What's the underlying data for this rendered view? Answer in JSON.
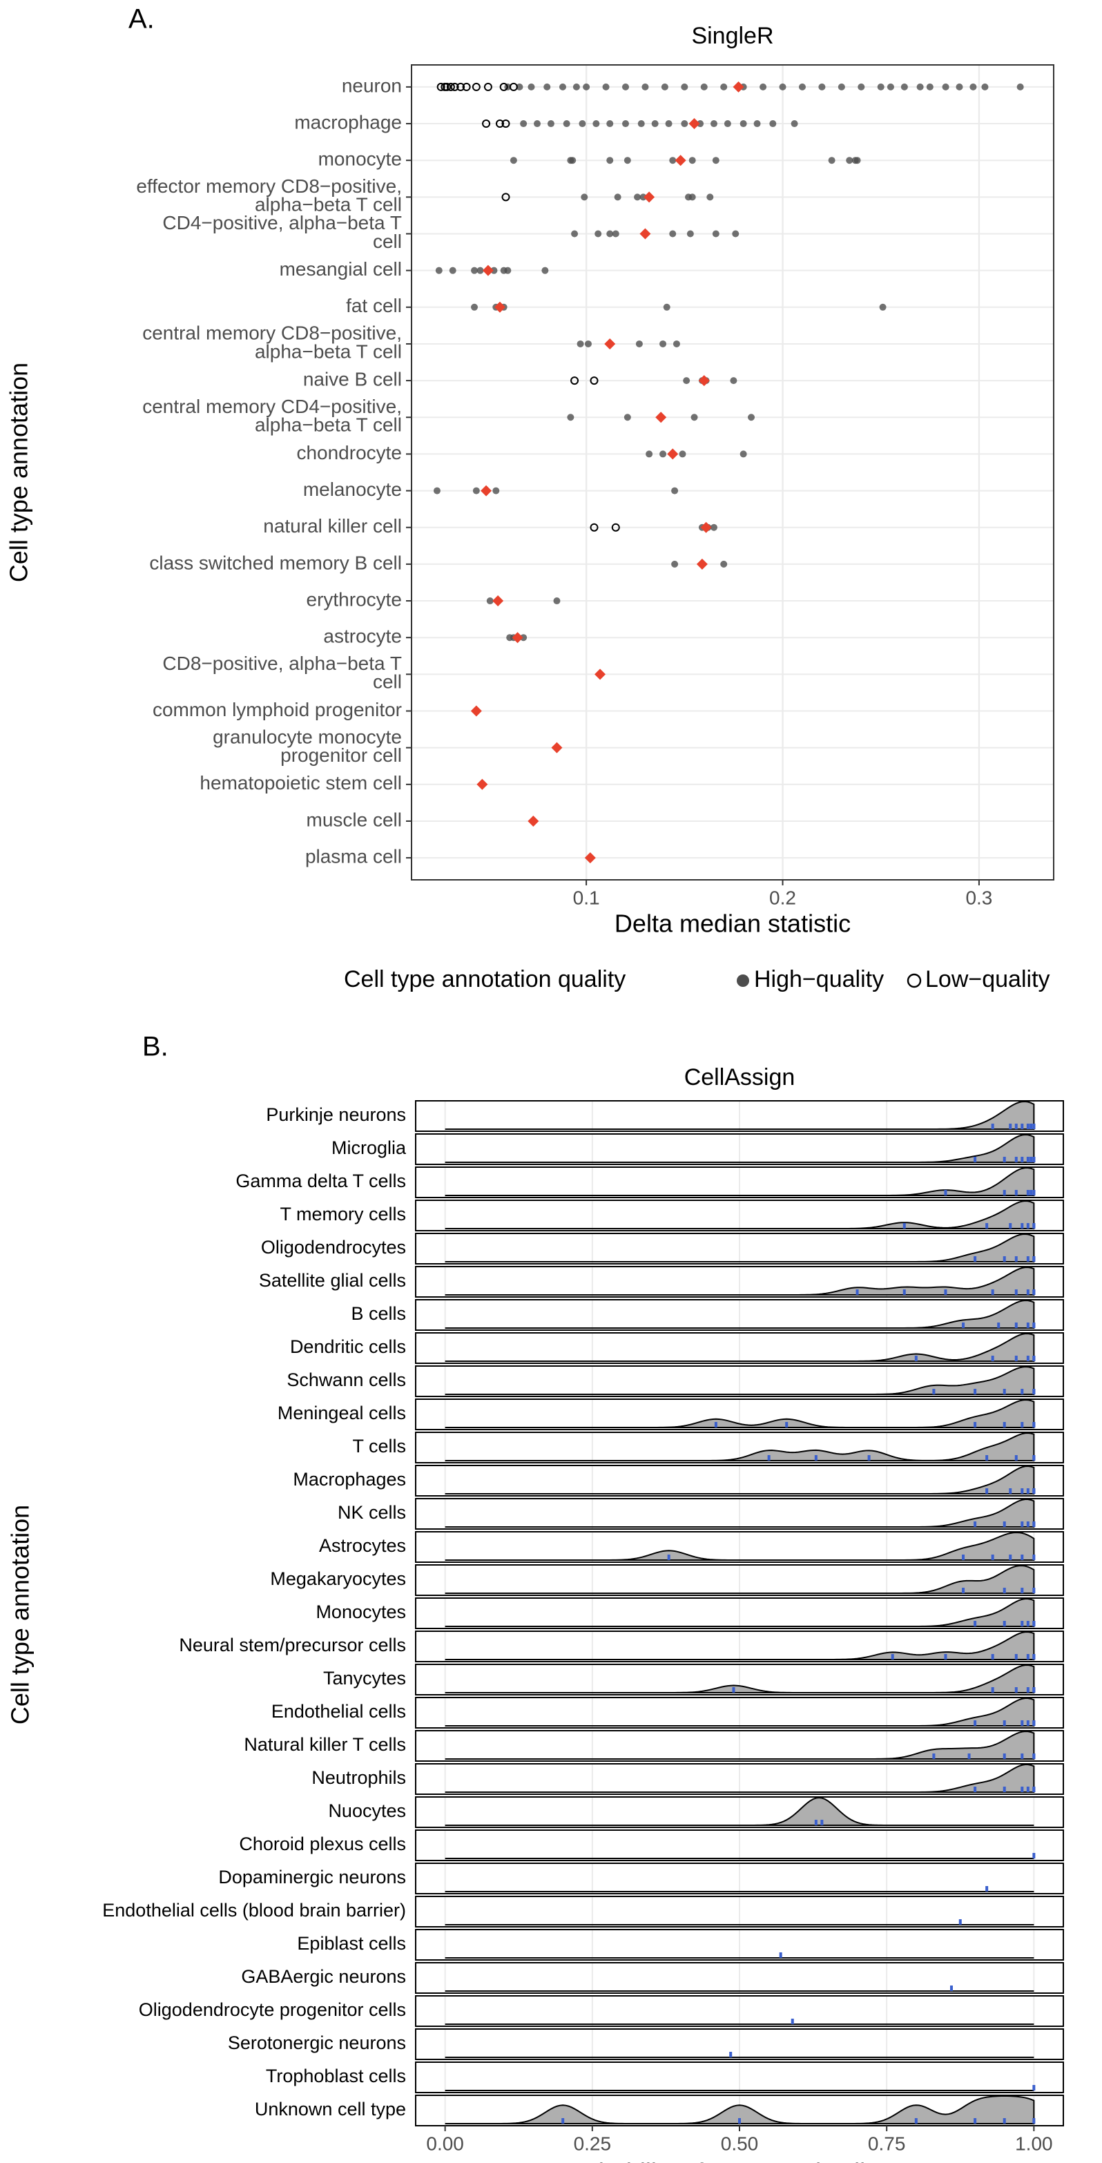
{
  "chart_data": [
    {
      "type": "dot",
      "panel_label": "A.",
      "title": "SingleR",
      "x_label": "Delta median statistic",
      "y_label": "Cell type annotation",
      "categories": [
        "neuron",
        "macrophage",
        "monocyte",
        "effector memory CD8−positive,\nalpha−beta T cell",
        "CD4−positive, alpha−beta T\ncell",
        "mesangial cell",
        "fat cell",
        "central memory CD8−positive,\nalpha−beta T cell",
        "naive B cell",
        "central memory CD4−positive,\nalpha−beta T cell",
        "chondrocyte",
        "melanocyte",
        "natural killer cell",
        "class switched memory B cell",
        "erythrocyte",
        "astrocyte",
        "CD8−positive, alpha−beta T\ncell",
        "common lymphoid progenitor",
        "granulocyte monocyte\nprogenitor cell",
        "hematopoietic stem cell",
        "muscle cell",
        "plasma cell"
      ],
      "medians": [
        0.1775,
        0.155,
        0.148,
        0.132,
        0.13,
        0.05,
        0.056,
        0.112,
        0.16,
        0.138,
        0.144,
        0.049,
        0.161,
        0.159,
        0.055,
        0.065,
        0.107,
        0.044,
        0.085,
        0.047,
        0.073,
        0.102
      ],
      "median_color": "#e8412c",
      "series": [
        {
          "name": "High−quality",
          "color": "#4d4d4d",
          "filled": true,
          "values": [
            [
              0.06,
              0.066,
              0.072,
              0.08,
              0.088,
              0.095,
              0.1,
              0.11,
              0.12,
              0.13,
              0.14,
              0.15,
              0.16,
              0.17,
              0.18,
              0.19,
              0.2,
              0.21,
              0.22,
              0.23,
              0.24,
              0.25,
              0.255,
              0.262,
              0.27,
              0.275,
              0.283,
              0.29,
              0.297,
              0.303,
              0.321
            ],
            [
              0.068,
              0.075,
              0.082,
              0.09,
              0.098,
              0.105,
              0.112,
              0.12,
              0.128,
              0.135,
              0.142,
              0.15,
              0.158,
              0.165,
              0.172,
              0.18,
              0.187,
              0.195,
              0.206
            ],
            [
              0.063,
              0.092,
              0.093,
              0.112,
              0.121,
              0.144,
              0.154,
              0.166,
              0.225,
              0.234,
              0.237,
              0.238
            ],
            [
              0.099,
              0.116,
              0.126,
              0.129,
              0.152,
              0.154,
              0.163
            ],
            [
              0.094,
              0.106,
              0.112,
              0.115,
              0.144,
              0.153,
              0.166,
              0.176
            ],
            [
              0.025,
              0.032,
              0.043,
              0.046,
              0.053,
              0.058,
              0.06,
              0.079
            ],
            [
              0.043,
              0.054,
              0.058,
              0.141,
              0.251
            ],
            [
              0.097,
              0.101,
              0.127,
              0.139,
              0.146
            ],
            [
              0.151,
              0.159,
              0.161,
              0.175
            ],
            [
              0.092,
              0.121,
              0.155,
              0.184
            ],
            [
              0.132,
              0.139,
              0.149,
              0.18
            ],
            [
              0.024,
              0.044,
              0.054,
              0.145
            ],
            [
              0.159,
              0.162,
              0.165
            ],
            [
              0.145,
              0.17
            ],
            [
              0.051,
              0.085
            ],
            [
              0.061,
              0.063,
              0.068
            ],
            [],
            [],
            [],
            [],
            [],
            []
          ]
        },
        {
          "name": "Low−quality",
          "color": "#000000",
          "filled": false,
          "values": [
            [
              0.026,
              0.028,
              0.029,
              0.031,
              0.033,
              0.036,
              0.039,
              0.044,
              0.05,
              0.058,
              0.063
            ],
            [
              0.049,
              0.056,
              0.059
            ],
            [],
            [
              0.059
            ],
            [],
            [],
            [],
            [],
            [
              0.094,
              0.104
            ],
            [],
            [],
            [],
            [
              0.104,
              0.115
            ],
            [],
            [],
            [],
            [],
            [],
            [],
            [],
            [],
            []
          ]
        }
      ],
      "xlim": [
        0.011,
        0.338
      ],
      "xticks": [
        0.1,
        0.2,
        0.3
      ],
      "grid": true,
      "legend_title": "Cell type annotation quality",
      "legend_position": "bottom"
    },
    {
      "type": "ridgeline",
      "panel_label": "B.",
      "title": "CellAssign",
      "x_label": "Probability of annotated cell type",
      "y_label": "Cell type annotation",
      "categories": [
        "Purkinje neurons",
        "Microglia",
        "Gamma delta T cells",
        "T memory cells",
        "Oligodendrocytes",
        "Satellite glial cells",
        "B cells",
        "Dendritic cells",
        "Schwann cells",
        "Meningeal cells",
        "T cells",
        "Macrophages",
        "NK cells",
        "Astrocytes",
        "Megakaryocytes",
        "Monocytes",
        "Neural stem/precursor cells",
        "Tanycytes",
        "Endothelial cells",
        "Natural killer T cells",
        "Neutrophils",
        "Nuocytes",
        "Choroid plexus cells",
        "Dopaminergic neurons",
        "Endothelial cells (blood brain barrier)",
        "Epiblast cells",
        "GABAergic neurons",
        "Oligodendrocyte progenitor cells",
        "Serotonergic neurons",
        "Trophoblast cells",
        "Unknown cell type"
      ],
      "values": [
        [
          0.93,
          0.96,
          0.98,
          0.99,
          1.0,
          1.0,
          0.995,
          0.97
        ],
        [
          0.9,
          0.95,
          0.97,
          0.98,
          0.99,
          1,
          1,
          0.995
        ],
        [
          0.85,
          0.95,
          0.97,
          0.99,
          1,
          1,
          0.995
        ],
        [
          0.78,
          0.92,
          0.96,
          0.98,
          0.99,
          1,
          1
        ],
        [
          0.9,
          0.95,
          0.97,
          0.99,
          1,
          1
        ],
        [
          0.7,
          0.78,
          0.85,
          0.93,
          0.97,
          0.99,
          1,
          1
        ],
        [
          0.88,
          0.94,
          0.97,
          0.99,
          1,
          1
        ],
        [
          0.8,
          0.93,
          0.97,
          0.99,
          1,
          1
        ],
        [
          0.83,
          0.9,
          0.95,
          0.98,
          1,
          1
        ],
        [
          0.46,
          0.58,
          0.9,
          0.95,
          0.98,
          1,
          1
        ],
        [
          0.55,
          0.63,
          0.72,
          0.92,
          0.97,
          1,
          1
        ],
        [
          0.92,
          0.96,
          0.98,
          0.99,
          1,
          1,
          1
        ],
        [
          0.9,
          0.95,
          0.98,
          0.99,
          1,
          1
        ],
        [
          0.38,
          0.88,
          0.93,
          0.96,
          0.98,
          1
        ],
        [
          0.88,
          0.95,
          0.98,
          1
        ],
        [
          0.9,
          0.95,
          0.98,
          0.99,
          1,
          1
        ],
        [
          0.76,
          0.85,
          0.93,
          0.97,
          0.99,
          1,
          1
        ],
        [
          0.49,
          0.93,
          0.97,
          0.99,
          1,
          1
        ],
        [
          0.9,
          0.95,
          0.98,
          0.99,
          1,
          1
        ],
        [
          0.83,
          0.89,
          0.95,
          0.98,
          1,
          1
        ],
        [
          0.9,
          0.95,
          0.98,
          0.99,
          1,
          1
        ],
        [
          0.63,
          0.64
        ],
        [
          1.0
        ],
        [
          0.92
        ],
        [
          0.875
        ],
        [
          0.57
        ],
        [
          0.86
        ],
        [
          0.59
        ],
        [
          0.485
        ],
        [
          1.0
        ],
        [
          0.2,
          0.5,
          0.8,
          0.9,
          0.95,
          1
        ]
      ],
      "fill_color": "#a6a6a6",
      "rug_color": "#3a5fcd",
      "xlim": [
        -0.05,
        1.05
      ],
      "xticks": [
        {
          "value": 0,
          "label": "0.00"
        },
        {
          "value": 0.25,
          "label": "0.25"
        },
        {
          "value": 0.5,
          "label": "0.50"
        },
        {
          "value": 0.75,
          "label": "0.75"
        },
        {
          "value": 1,
          "label": "1.00"
        }
      ],
      "grid": true
    }
  ]
}
